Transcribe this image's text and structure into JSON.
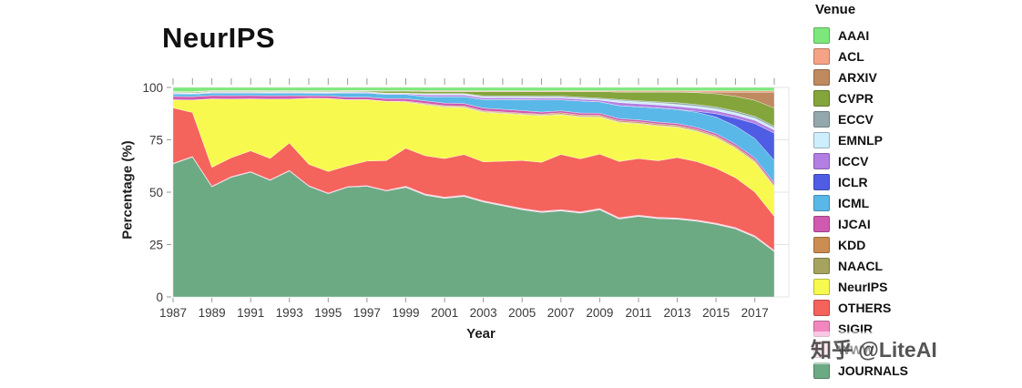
{
  "watermark": {
    "text": "知乎 @LiteAI"
  },
  "colors": {
    "background": "#ffffff",
    "grid": "#e4e4e4",
    "tick": "#9a9a9a",
    "axis_text": "#3a3a3a",
    "title_text": "#111111"
  },
  "chart_data": {
    "type": "area",
    "stacked": true,
    "values_are_percent_shares": true,
    "title": "NeurIPS",
    "xlabel": "Year",
    "ylabel": "Percentage (%)",
    "legend_title": "Venue",
    "legend_position": "right",
    "grid": true,
    "ylim": [
      0,
      100
    ],
    "yticks": [
      0,
      25,
      50,
      75,
      100
    ],
    "x": [
      1987,
      1988,
      1989,
      1990,
      1991,
      1992,
      1993,
      1994,
      1995,
      1996,
      1997,
      1998,
      1999,
      2000,
      2001,
      2002,
      2003,
      2004,
      2005,
      2006,
      2007,
      2008,
      2009,
      2010,
      2011,
      2012,
      2013,
      2014,
      2015,
      2016,
      2017,
      2018
    ],
    "xticks": [
      1987,
      1989,
      1991,
      1993,
      1995,
      1997,
      1999,
      2001,
      2003,
      2005,
      2007,
      2009,
      2011,
      2013,
      2015,
      2017
    ],
    "stack_order_bottom_to_top": [
      "JOURNALS",
      "WWW",
      "SIGIR",
      "OTHERS",
      "NeurIPS",
      "NAACL",
      "KDD",
      "IJCAI",
      "ICML",
      "ICLR",
      "ICCV",
      "EMNLP",
      "ECCV",
      "CVPR",
      "ARXIV",
      "ACL",
      "AAAI"
    ],
    "series": [
      {
        "name": "AAAI",
        "color": "#7ce87c",
        "values": [
          2,
          2,
          1.5,
          1.5,
          1.5,
          1.5,
          1.5,
          1.5,
          1.5,
          1.5,
          1.5,
          1.5,
          1.5,
          1.5,
          1.5,
          1.5,
          1.5,
          1.5,
          1.5,
          1.5,
          1.5,
          1.5,
          1.5,
          1.5,
          1.5,
          1.5,
          1.5,
          1.5,
          1.5,
          1.5,
          1.5,
          1.5
        ]
      },
      {
        "name": "ACL",
        "color": "#f5a286",
        "values": [
          0.2,
          0.2,
          0.2,
          0.2,
          0.2,
          0.2,
          0.2,
          0.2,
          0.2,
          0.2,
          0.2,
          0.2,
          0.2,
          0.4,
          0.4,
          0.4,
          0.4,
          0.4,
          0.4,
          0.4,
          0.4,
          0.4,
          0.4,
          0.6,
          0.6,
          0.6,
          0.6,
          0.6,
          0.6,
          0.6,
          0.6,
          0.6
        ]
      },
      {
        "name": "ARXIV",
        "color": "#bf8a5f",
        "values": [
          0,
          0,
          0,
          0,
          0,
          0,
          0,
          0,
          0,
          0,
          0,
          0,
          0,
          0,
          0,
          0,
          0,
          0,
          0,
          0,
          0,
          0,
          0,
          0,
          0,
          0,
          0,
          0.3,
          0.8,
          1.8,
          3.5,
          7
        ]
      },
      {
        "name": "CVPR",
        "color": "#84a53c",
        "values": [
          0.4,
          0.4,
          0.4,
          0.4,
          0.4,
          0.4,
          0.4,
          0.4,
          0.4,
          0.4,
          0.4,
          1,
          1,
          1,
          1,
          1,
          2,
          2,
          2,
          2,
          2,
          2.5,
          3,
          3.5,
          4,
          4.5,
          5,
          5.5,
          6,
          6.5,
          7,
          8
        ]
      },
      {
        "name": "ECCV",
        "color": "#93a8ad",
        "values": [
          0.2,
          0.2,
          0.2,
          0.2,
          0.2,
          0.2,
          0.2,
          0.2,
          0.2,
          0.2,
          0.2,
          0.2,
          0.2,
          0.2,
          0.2,
          0.2,
          0.5,
          0.5,
          0.5,
          0.5,
          0.5,
          0.5,
          0.5,
          0.5,
          0.5,
          0.5,
          0.8,
          0.8,
          0.8,
          0.8,
          0.8,
          0.8
        ]
      },
      {
        "name": "EMNLP",
        "color": "#cdeefc",
        "values": [
          0.1,
          0.1,
          0.1,
          0.1,
          0.1,
          0.1,
          0.1,
          0.1,
          0.1,
          0.1,
          0.1,
          0.1,
          0.1,
          0.4,
          0.4,
          0.4,
          0.4,
          0.4,
          0.4,
          0.4,
          0.4,
          0.4,
          0.4,
          0.9,
          0.9,
          0.9,
          0.9,
          0.9,
          0.9,
          0.9,
          0.9,
          0.9
        ]
      },
      {
        "name": "ICCV",
        "color": "#b37fe3",
        "values": [
          0.3,
          0.3,
          0.3,
          0.3,
          0.3,
          0.3,
          0.3,
          0.3,
          0.3,
          0.3,
          0.3,
          0.3,
          0.3,
          0.8,
          0.8,
          0.8,
          0.8,
          0.8,
          0.8,
          0.8,
          0.8,
          0.8,
          0.8,
          1.4,
          1.4,
          1.4,
          1.4,
          1.4,
          1.4,
          1.4,
          1.4,
          1.4
        ]
      },
      {
        "name": "ICLR",
        "color": "#4e5de4",
        "values": [
          0,
          0,
          0,
          0,
          0,
          0,
          0,
          0,
          0,
          0,
          0,
          0,
          0,
          0,
          0,
          0,
          0,
          0,
          0,
          0,
          0,
          0,
          0,
          0,
          0,
          0,
          0,
          0.5,
          1.5,
          3.5,
          6.5,
          12
        ]
      },
      {
        "name": "ICML",
        "color": "#59b8e8",
        "values": [
          1.2,
          1.2,
          1.2,
          1.2,
          1.2,
          1.2,
          1.2,
          1.2,
          1.2,
          2,
          2,
          2,
          2,
          2,
          3,
          3.2,
          4,
          4.5,
          5,
          5.5,
          5,
          5.5,
          5.2,
          6,
          6,
          6.5,
          6.5,
          7,
          7.5,
          8,
          8.5,
          10
        ]
      },
      {
        "name": "IJCAI",
        "color": "#cf5ab0",
        "values": [
          1.6,
          1.6,
          1.6,
          1.6,
          1.6,
          1.6,
          1.6,
          1.2,
          1.2,
          1.2,
          1.2,
          1.2,
          1.2,
          1.2,
          1.2,
          1.2,
          1.2,
          1.2,
          1.2,
          0.9,
          0.9,
          0.9,
          0.9,
          0.9,
          0.9,
          0.9,
          0.9,
          0.9,
          0.9,
          0.9,
          0.9,
          0.9
        ]
      },
      {
        "name": "KDD",
        "color": "#cc8d52",
        "values": [
          0,
          0,
          0,
          0,
          0,
          0,
          0,
          0,
          0,
          0,
          0,
          0,
          0.4,
          0.4,
          0.4,
          0.4,
          0.4,
          0.4,
          0.4,
          0.4,
          0.6,
          0.6,
          0.6,
          0.6,
          0.6,
          0.6,
          0.6,
          0.6,
          0.6,
          0.6,
          0.6,
          0.6
        ]
      },
      {
        "name": "NAACL",
        "color": "#a5a35e",
        "values": [
          0,
          0,
          0,
          0,
          0,
          0,
          0,
          0,
          0,
          0,
          0,
          0,
          0,
          0.3,
          0.3,
          0.3,
          0.3,
          0.3,
          0.3,
          0.3,
          0.3,
          0.3,
          0.3,
          0.3,
          0.3,
          0.3,
          0.3,
          0.3,
          0.3,
          0.3,
          0.3,
          0.3
        ]
      },
      {
        "name": "NeurIPS",
        "color": "#f8f94e",
        "values": [
          4,
          6,
          33,
          28,
          25,
          28,
          21,
          31,
          34,
          32,
          30,
          28,
          22,
          24,
          24,
          22,
          23,
          22,
          21,
          21,
          18,
          19,
          17,
          18,
          16,
          16,
          14,
          14,
          14,
          13,
          13,
          13
        ]
      },
      {
        "name": "OTHERS",
        "color": "#f4635c",
        "values": [
          27,
          21,
          9,
          9,
          10,
          10,
          13,
          10,
          10,
          10,
          12,
          14,
          18,
          18,
          18,
          19,
          18,
          20,
          22,
          22,
          25,
          24,
          25,
          26,
          26,
          26,
          28,
          27,
          25,
          22,
          19,
          15
        ]
      },
      {
        "name": "SIGIR",
        "color": "#f287c0",
        "values": [
          0.3,
          0.3,
          0.3,
          0.3,
          0.3,
          0.3,
          0.3,
          0.3,
          0.3,
          0.3,
          0.3,
          0.3,
          0.3,
          0.3,
          0.3,
          0.3,
          0.3,
          0.3,
          0.3,
          0.3,
          0.3,
          0.3,
          0.3,
          0.3,
          0.3,
          0.3,
          0.3,
          0.3,
          0.3,
          0.3,
          0.3,
          0.3
        ]
      },
      {
        "name": "WWW",
        "color": "#f8c9da",
        "values": [
          0,
          0,
          0,
          0,
          0,
          0,
          0,
          0,
          0,
          0,
          0,
          0,
          0.3,
          0.3,
          0.3,
          0.3,
          0.3,
          0.3,
          0.3,
          0.3,
          0.3,
          0.3,
          0.3,
          0.3,
          0.3,
          0.3,
          0.3,
          0.3,
          0.3,
          0.3,
          0.3,
          0.3
        ]
      },
      {
        "name": "JOURNALS",
        "color": "#6caa84",
        "values": [
          65,
          67,
          53,
          57,
          60,
          55,
          60,
          52,
          48,
          53,
          54,
          50,
          52,
          48,
          46,
          47,
          44,
          42,
          40,
          38,
          39,
          38,
          40,
          36,
          37,
          36,
          36,
          35,
          33,
          30,
          26,
          20
        ]
      }
    ]
  }
}
